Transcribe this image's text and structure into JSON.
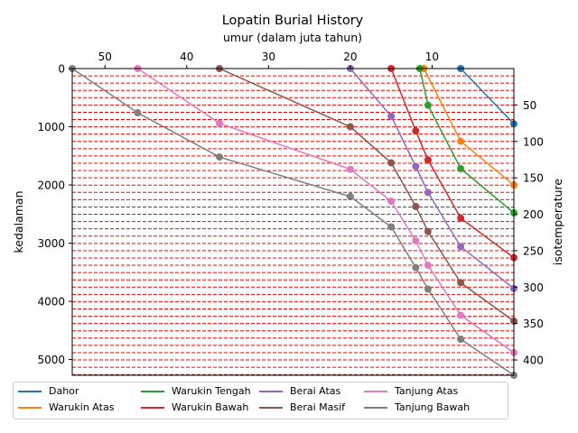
{
  "chart_data": {
    "type": "line",
    "title": "Lopatin Burial History",
    "xlabel": "umur (dalam juta tahun)",
    "ylabel": "kedalaman",
    "y2label": "isotemperature",
    "xlim": [
      54,
      0
    ],
    "ylim": [
      5270,
      0
    ],
    "y2lim": [
      421,
      0
    ],
    "x_axis_position": "top",
    "x_ticks": [
      50,
      40,
      30,
      20,
      10
    ],
    "y_ticks": [
      0,
      1000,
      2000,
      3000,
      4000,
      5000
    ],
    "y2_ticks": [
      50,
      100,
      150,
      200,
      250,
      300,
      350,
      400
    ],
    "isotherm_lines": {
      "style": "dashed",
      "color": "#ff0000",
      "start": 0,
      "step": 10,
      "end": 420
    },
    "legend_placement": "bottom",
    "series": [
      {
        "name": "Dahor",
        "color": "#1f77b4",
        "x": [
          6.5,
          0
        ],
        "y": [
          0,
          950
        ]
      },
      {
        "name": "Warukin Atas",
        "color": "#ff7f0e",
        "x": [
          11,
          6.5,
          0
        ],
        "y": [
          0,
          1250,
          2000
        ]
      },
      {
        "name": "Warukin Tengah",
        "color": "#2ca02c",
        "x": [
          11.5,
          10.5,
          6.5,
          0
        ],
        "y": [
          0,
          630,
          1720,
          2480
        ]
      },
      {
        "name": "Warukin Bawah",
        "color": "#d62728",
        "x": [
          15,
          12,
          10.5,
          6.5,
          0
        ],
        "y": [
          0,
          1070,
          1570,
          2570,
          3250
        ]
      },
      {
        "name": "Berai Atas",
        "color": "#9467bd",
        "x": [
          20,
          15,
          12,
          10.5,
          6.5,
          0
        ],
        "y": [
          0,
          820,
          1680,
          2130,
          3060,
          3780
        ]
      },
      {
        "name": "Berai Masif",
        "color": "#8c564b",
        "x": [
          36,
          20,
          15,
          12,
          10.5,
          6.5,
          0
        ],
        "y": [
          0,
          1000,
          1620,
          2370,
          2800,
          3680,
          4340
        ]
      },
      {
        "name": "Tanjung Atas",
        "color": "#e377c2",
        "x": [
          46,
          36,
          20,
          15,
          12,
          10.5,
          6.5,
          0
        ],
        "y": [
          0,
          940,
          1730,
          2280,
          2960,
          3380,
          4240,
          4880
        ]
      },
      {
        "name": "Tanjung Bawah",
        "color": "#7f7f7f",
        "x": [
          54,
          46,
          36,
          20,
          15,
          12,
          10.5,
          6.5,
          0
        ],
        "y": [
          0,
          760,
          1520,
          2200,
          2720,
          3420,
          3790,
          4650,
          5270
        ]
      }
    ]
  }
}
